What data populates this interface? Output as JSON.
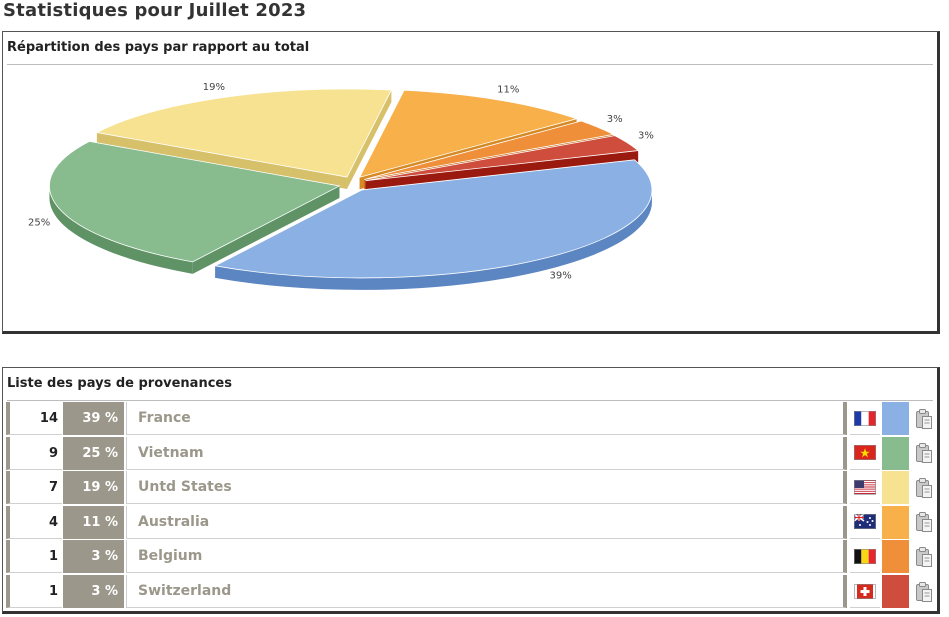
{
  "page_title": "Statistiques pour Juillet 2023",
  "chart_panel": {
    "title": "Répartition des pays par rapport au total"
  },
  "list_panel": {
    "title": "Liste des pays de provenances"
  },
  "chart_data": {
    "type": "pie",
    "title": "Répartition des pays par rapport au total",
    "categories": [
      "France",
      "Vietnam",
      "Untd States",
      "Australia",
      "Belgium",
      "Switzerland"
    ],
    "values": [
      39,
      25,
      19,
      11,
      3,
      3
    ],
    "labels": [
      "39%",
      "25%",
      "19%",
      "11%",
      "3%",
      "3%"
    ],
    "colors": [
      "#8bb0e3",
      "#88bb8e",
      "#f7e291",
      "#f8b04a",
      "#ef8f3a",
      "#cf4d3c"
    ],
    "side_colors": [
      "#5c86c2",
      "#5f9366",
      "#d7c06a",
      "#d58a25",
      "#c66a1a",
      "#9b1a10"
    ],
    "style": "3d-exploded"
  },
  "rows": [
    {
      "count": "14",
      "pct": "39 %",
      "name": "France",
      "flag": "fr",
      "color": "#8bb0e3"
    },
    {
      "count": "9",
      "pct": "25 %",
      "name": "Vietnam",
      "flag": "vn",
      "color": "#88bb8e"
    },
    {
      "count": "7",
      "pct": "19 %",
      "name": "Untd States",
      "flag": "us",
      "color": "#f7e291"
    },
    {
      "count": "4",
      "pct": "11 %",
      "name": "Australia",
      "flag": "au",
      "color": "#f8b04a"
    },
    {
      "count": "1",
      "pct": "3 %",
      "name": "Belgium",
      "flag": "be",
      "color": "#ef8f3a"
    },
    {
      "count": "1",
      "pct": "3 %",
      "name": "Switzerland",
      "flag": "ch",
      "color": "#cf4d3c"
    }
  ],
  "icons": {
    "row_action": "clipboard-icon"
  }
}
